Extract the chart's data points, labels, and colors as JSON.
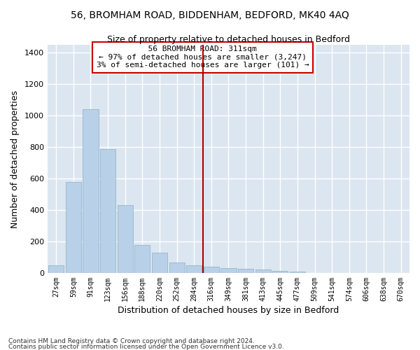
{
  "title1": "56, BROMHAM ROAD, BIDDENHAM, BEDFORD, MK40 4AQ",
  "title2": "Size of property relative to detached houses in Bedford",
  "xlabel": "Distribution of detached houses by size in Bedford",
  "ylabel": "Number of detached properties",
  "categories": [
    "27sqm",
    "59sqm",
    "91sqm",
    "123sqm",
    "156sqm",
    "188sqm",
    "220sqm",
    "252sqm",
    "284sqm",
    "316sqm",
    "349sqm",
    "381sqm",
    "413sqm",
    "445sqm",
    "477sqm",
    "509sqm",
    "541sqm",
    "574sqm",
    "606sqm",
    "638sqm",
    "670sqm"
  ],
  "values": [
    47,
    578,
    1040,
    787,
    430,
    178,
    128,
    65,
    47,
    40,
    30,
    27,
    22,
    15,
    10,
    0,
    0,
    0,
    0,
    0,
    0
  ],
  "bar_color": "#b8d0e8",
  "bar_edge_color": "#8aafc8",
  "vline_x": 9,
  "vline_color": "#aa0000",
  "annotation_text": "  56 BROMHAM ROAD: 311sqm  \n← 97% of detached houses are smaller (3,247)\n3% of semi-detached houses are larger (101) →",
  "annotation_box_color": "#cc0000",
  "ylim": [
    0,
    1450
  ],
  "yticks": [
    0,
    200,
    400,
    600,
    800,
    1000,
    1200,
    1400
  ],
  "background_color": "#dce6f0",
  "grid_color": "#ffffff",
  "footnote1": "Contains HM Land Registry data © Crown copyright and database right 2024.",
  "footnote2": "Contains public sector information licensed under the Open Government Licence v3.0."
}
